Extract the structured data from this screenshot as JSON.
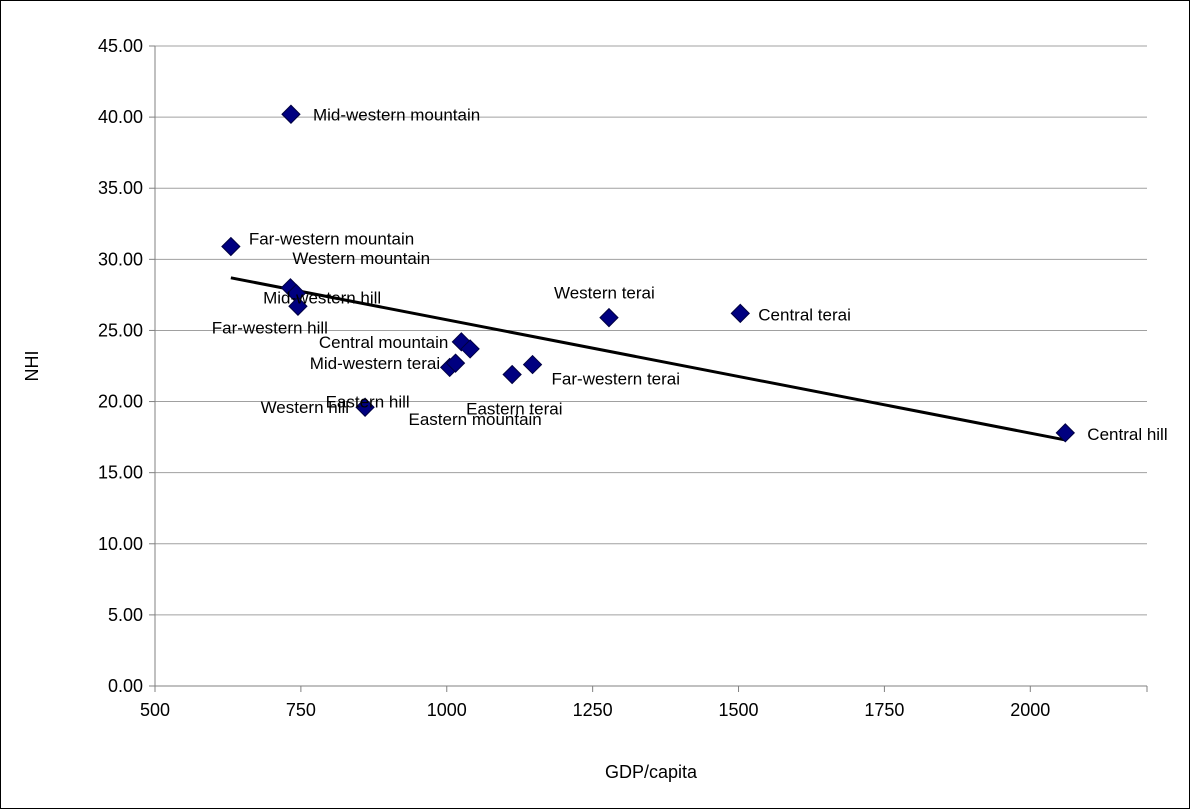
{
  "chart_data": {
    "type": "scatter",
    "xlabel": "GDP/capita",
    "ylabel": "NHI",
    "xlim": [
      500,
      2200
    ],
    "ylim": [
      0,
      45
    ],
    "x_ticks": [
      500,
      750,
      1000,
      1250,
      1500,
      1750,
      2000
    ],
    "x_tick_labels": [
      "500",
      "750",
      "1000",
      "1250",
      "1500",
      "1750",
      "2000"
    ],
    "y_ticks": [
      0,
      5,
      10,
      15,
      20,
      25,
      30,
      35,
      40,
      45
    ],
    "y_tick_labels": [
      "0.00",
      "5.00",
      "10.00",
      "15.00",
      "20.00",
      "25.00",
      "30.00",
      "35.00",
      "40.00",
      "45.00"
    ],
    "grid": "horizontal",
    "marker_color": "#000080",
    "trendline": {
      "type": "linear",
      "x": [
        630,
        2060
      ],
      "y": [
        28.7,
        17.3
      ]
    },
    "points": [
      {
        "label": "Mid-western mountain",
        "x": 733,
        "y": 40.2
      },
      {
        "label": "Far-western mountain",
        "x": 630,
        "y": 30.9
      },
      {
        "label": "Western mountain",
        "x": 732,
        "y": 28.0
      },
      {
        "label": "Mid-western hill",
        "x": 742,
        "y": 27.6
      },
      {
        "label": "Far-western hill",
        "x": 745,
        "y": 26.7
      },
      {
        "label": "Western terai",
        "x": 1278,
        "y": 25.9
      },
      {
        "label": "Central terai",
        "x": 1503,
        "y": 26.2
      },
      {
        "label": "Central mountain",
        "x": 1025,
        "y": 24.2
      },
      {
        "label": "Mid-western terai",
        "x": 1040,
        "y": 23.7
      },
      {
        "label": "Eastern hill",
        "x": 1005,
        "y": 22.4
      },
      {
        "label": "Eastern mountain",
        "x": 1015,
        "y": 22.7
      },
      {
        "label": "Eastern terai",
        "x": 1112,
        "y": 21.9
      },
      {
        "label": "Far-western terai",
        "x": 1147,
        "y": 22.6
      },
      {
        "label": "Western hill",
        "x": 860,
        "y": 19.6
      },
      {
        "label": "Central hill",
        "x": 2060,
        "y": 17.8
      }
    ]
  }
}
